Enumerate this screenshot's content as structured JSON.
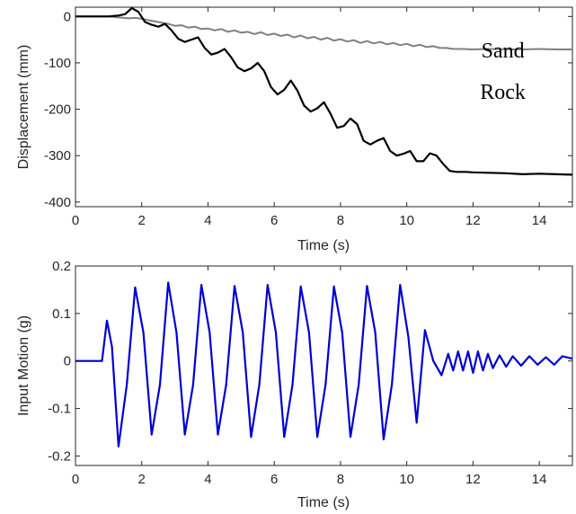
{
  "chart_data": [
    {
      "type": "line",
      "xlabel": "Time (s)",
      "ylabel": "Displacement (mm)",
      "xlim": [
        0,
        15
      ],
      "ylim": [
        -410,
        20
      ],
      "xticks": [
        "0",
        "2",
        "4",
        "6",
        "8",
        "10",
        "12",
        "14"
      ],
      "yticks": [
        "0",
        "-100",
        "-200",
        "-300",
        "-400"
      ],
      "grid": false,
      "annotations": [
        {
          "text": "Sand",
          "x": 12.9,
          "y": -88
        },
        {
          "text": "Rock",
          "x": 12.9,
          "y": -178
        }
      ],
      "series": [
        {
          "color": "#808080",
          "x": [
            0,
            0.5,
            1.0,
            1.3,
            1.6,
            1.8,
            2.0,
            2.2,
            2.5,
            2.8,
            3.0,
            3.2,
            3.4,
            3.6,
            3.8,
            4.0,
            4.2,
            4.4,
            4.6,
            4.8,
            5.0,
            5.2,
            5.4,
            5.6,
            5.8,
            6.0,
            6.2,
            6.4,
            6.6,
            6.8,
            7.0,
            7.2,
            7.4,
            7.6,
            7.8,
            8.0,
            8.2,
            8.4,
            8.6,
            8.8,
            9.0,
            9.2,
            9.4,
            9.6,
            9.8,
            10.0,
            10.2,
            10.4,
            10.6,
            10.8,
            11.0,
            11.2,
            11.4,
            11.7,
            12.0,
            12.5,
            13.0,
            13.5,
            14.0,
            14.5,
            15.0
          ],
          "y": [
            0,
            0,
            0,
            -2,
            -4,
            -3,
            -5,
            -8,
            -12,
            -16,
            -20,
            -19,
            -24,
            -22,
            -27,
            -26,
            -30,
            -27,
            -33,
            -30,
            -35,
            -33,
            -38,
            -34,
            -40,
            -37,
            -42,
            -39,
            -45,
            -41,
            -47,
            -44,
            -50,
            -46,
            -52,
            -49,
            -54,
            -51,
            -57,
            -53,
            -58,
            -55,
            -60,
            -57,
            -62,
            -59,
            -64,
            -61,
            -66,
            -64,
            -68,
            -68,
            -70,
            -70,
            -71,
            -70,
            -71,
            -71,
            -70,
            -71,
            -71
          ]
        },
        {
          "color": "#000000",
          "x": [
            0,
            0.5,
            1.0,
            1.3,
            1.5,
            1.7,
            1.9,
            2.1,
            2.3,
            2.5,
            2.7,
            2.9,
            3.1,
            3.3,
            3.5,
            3.7,
            3.9,
            4.1,
            4.3,
            4.5,
            4.7,
            4.9,
            5.1,
            5.3,
            5.5,
            5.7,
            5.9,
            6.1,
            6.3,
            6.5,
            6.7,
            6.9,
            7.1,
            7.3,
            7.5,
            7.7,
            7.9,
            8.1,
            8.3,
            8.5,
            8.7,
            8.9,
            9.1,
            9.3,
            9.5,
            9.7,
            9.9,
            10.1,
            10.3,
            10.5,
            10.7,
            10.9,
            11.1,
            11.3,
            11.5,
            11.8,
            12.0,
            12.5,
            13.0,
            13.5,
            14.0,
            14.5,
            15.0
          ],
          "y": [
            0,
            0,
            0,
            2,
            5,
            18,
            10,
            -12,
            -18,
            -22,
            -16,
            -30,
            -48,
            -55,
            -50,
            -45,
            -68,
            -82,
            -78,
            -70,
            -88,
            -110,
            -118,
            -112,
            -100,
            -118,
            -152,
            -168,
            -158,
            -138,
            -160,
            -192,
            -205,
            -198,
            -185,
            -210,
            -240,
            -236,
            -220,
            -232,
            -268,
            -276,
            -268,
            -262,
            -290,
            -300,
            -296,
            -290,
            -312,
            -312,
            -295,
            -300,
            -318,
            -333,
            -335,
            -335,
            -336,
            -337,
            -338,
            -340,
            -339,
            -340,
            -341
          ]
        }
      ]
    },
    {
      "type": "line",
      "xlabel": "Time (s)",
      "ylabel": "Input Motion (g)",
      "xlim": [
        0,
        15
      ],
      "ylim": [
        -0.22,
        0.2
      ],
      "xticks": [
        "0",
        "2",
        "4",
        "6",
        "8",
        "10",
        "12",
        "14"
      ],
      "yticks": [
        "0.2",
        "0.1",
        "0",
        "-0.1",
        "-0.2"
      ],
      "grid": false,
      "series": [
        {
          "color": "#0000d0",
          "x": [
            0,
            0.8,
            0.95,
            1.1,
            1.3,
            1.55,
            1.8,
            2.05,
            2.3,
            2.55,
            2.8,
            3.05,
            3.3,
            3.55,
            3.8,
            4.05,
            4.3,
            4.55,
            4.8,
            5.05,
            5.3,
            5.55,
            5.8,
            6.05,
            6.3,
            6.55,
            6.8,
            7.05,
            7.3,
            7.55,
            7.8,
            8.05,
            8.3,
            8.55,
            8.8,
            9.05,
            9.3,
            9.55,
            9.8,
            10.05,
            10.3,
            10.55,
            10.8,
            11.05,
            11.25,
            11.4,
            11.55,
            11.7,
            11.85,
            12.0,
            12.15,
            12.3,
            12.45,
            12.6,
            12.8,
            13.0,
            13.2,
            13.45,
            13.7,
            13.95,
            14.2,
            14.45,
            14.7,
            15.0
          ],
          "y": [
            0,
            0,
            0.085,
            0.03,
            -0.18,
            -0.05,
            0.155,
            0.06,
            -0.155,
            -0.05,
            0.165,
            0.06,
            -0.155,
            -0.05,
            0.16,
            0.06,
            -0.155,
            -0.05,
            0.158,
            0.06,
            -0.16,
            -0.05,
            0.16,
            0.06,
            -0.16,
            -0.05,
            0.157,
            0.06,
            -0.16,
            -0.05,
            0.157,
            0.06,
            -0.16,
            -0.05,
            0.158,
            0.06,
            -0.165,
            -0.05,
            0.16,
            0.05,
            -0.13,
            0.065,
            0.0,
            -0.03,
            0.015,
            -0.02,
            0.02,
            -0.02,
            0.02,
            -0.025,
            0.02,
            -0.02,
            0.015,
            -0.015,
            0.012,
            -0.012,
            0.01,
            -0.01,
            0.01,
            -0.008,
            0.008,
            -0.008,
            0.01,
            0.005
          ]
        }
      ]
    }
  ]
}
